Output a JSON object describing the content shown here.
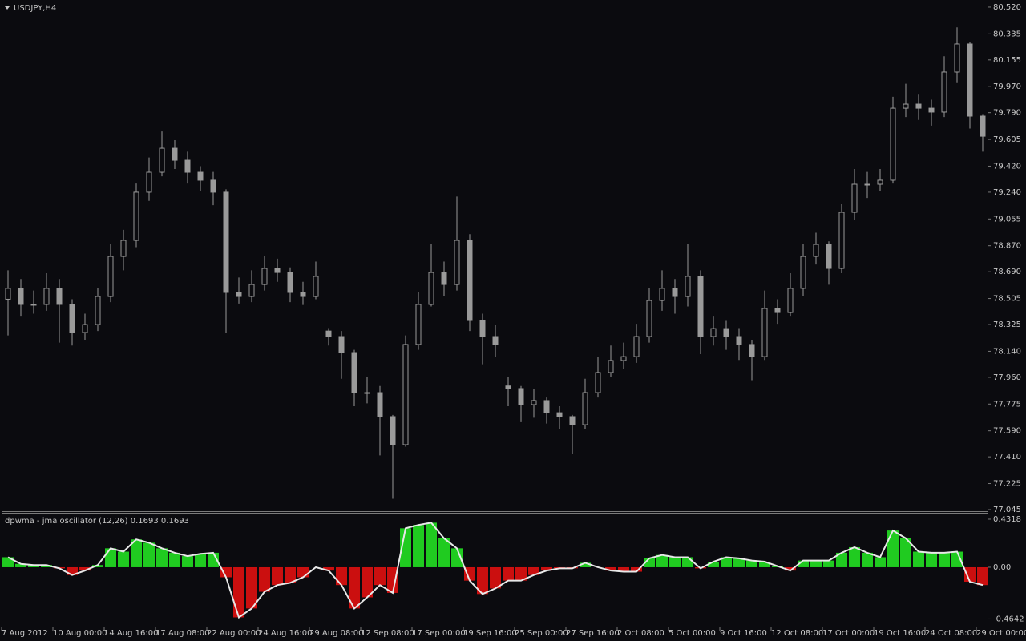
{
  "chart_data": [
    {
      "type": "candlestick",
      "title": "USDJPY,H4",
      "color": "#9a9a9a",
      "categories": [
        "7 Aug 2012",
        null,
        null,
        null,
        "10 Aug 00:00",
        null,
        null,
        null,
        "14 Aug 16:00",
        null,
        null,
        null,
        "17 Aug 08:00",
        null,
        null,
        null,
        "22 Aug 00:00",
        null,
        null,
        null,
        "24 Aug 16:00",
        null,
        null,
        null,
        "29 Aug 08:00",
        null,
        null,
        null,
        "12 Sep 08:00",
        null,
        null,
        null,
        "17 Sep 00:00",
        null,
        null,
        null,
        "19 Sep 16:00",
        null,
        null,
        null,
        "25 Sep 00:00",
        null,
        null,
        null,
        "27 Sep 16:00",
        null,
        null,
        null,
        "2 Oct 08:00",
        null,
        null,
        null,
        "5 Oct 00:00",
        null,
        null,
        null,
        "9 Oct 16:00",
        null,
        null,
        null,
        "12 Oct 08:00",
        null,
        null,
        null,
        "17 Oct 00:00",
        null,
        null,
        null,
        "19 Oct 16:00",
        null,
        null,
        null,
        "24 Oct 08:00",
        null,
        null,
        null,
        "29 Oct 00:00"
      ],
      "open": [
        78.5,
        78.575,
        78.464,
        78.464,
        78.575,
        78.464,
        78.27,
        78.325,
        78.519,
        78.796,
        78.907,
        79.24,
        79.378,
        79.544,
        79.461,
        79.378,
        79.323,
        79.24,
        78.547,
        78.519,
        78.602,
        78.713,
        78.685,
        78.547,
        78.519,
        78.28,
        78.242,
        78.131,
        77.854,
        77.854,
        77.688,
        77.494,
        78.187,
        78.464,
        78.685,
        78.602,
        78.907,
        78.353,
        78.242,
        77.9,
        77.882,
        77.771,
        77.799,
        77.715,
        77.688,
        77.632,
        77.854,
        77.993,
        78.076,
        78.103,
        78.242,
        78.491,
        78.575,
        78.519,
        78.658,
        78.242,
        78.297,
        78.242,
        78.187,
        78.103,
        78.436,
        78.408,
        78.575,
        78.796,
        78.879,
        78.713,
        79.101,
        79.295,
        79.295,
        79.323,
        79.821,
        79.849,
        79.821,
        79.794,
        80.071,
        80.265,
        79.766
      ],
      "high": [
        78.7,
        78.64,
        78.56,
        78.68,
        78.64,
        78.5,
        78.4,
        78.58,
        78.88,
        78.98,
        79.3,
        79.48,
        79.66,
        79.6,
        79.52,
        79.42,
        79.38,
        79.26,
        78.65,
        78.7,
        78.8,
        78.78,
        78.72,
        78.62,
        78.76,
        78.3,
        78.28,
        78.15,
        77.96,
        77.9,
        77.7,
        78.25,
        78.55,
        78.88,
        78.76,
        79.21,
        78.95,
        78.4,
        78.32,
        77.96,
        77.9,
        77.88,
        77.82,
        77.76,
        77.7,
        77.95,
        78.1,
        78.18,
        78.2,
        78.33,
        78.58,
        78.7,
        78.64,
        78.88,
        78.7,
        78.38,
        78.35,
        78.3,
        78.22,
        78.56,
        78.5,
        78.68,
        78.88,
        78.96,
        78.9,
        79.16,
        79.4,
        79.38,
        79.4,
        79.9,
        79.99,
        79.92,
        79.88,
        80.18,
        80.38,
        80.28,
        79.78
      ],
      "low": [
        78.25,
        78.38,
        78.4,
        78.42,
        78.2,
        78.18,
        78.22,
        78.28,
        78.48,
        78.7,
        78.86,
        79.18,
        79.35,
        79.4,
        79.3,
        79.25,
        79.15,
        78.27,
        78.47,
        78.48,
        78.56,
        78.62,
        78.48,
        78.46,
        78.5,
        78.18,
        77.95,
        77.76,
        77.78,
        77.42,
        77.12,
        77.48,
        78.15,
        78.45,
        78.52,
        78.56,
        78.28,
        78.05,
        78.1,
        77.76,
        77.65,
        77.68,
        77.64,
        77.6,
        77.43,
        77.6,
        77.82,
        77.96,
        78.02,
        78.06,
        78.2,
        78.42,
        78.4,
        78.45,
        78.12,
        78.18,
        78.15,
        78.08,
        77.94,
        78.08,
        78.33,
        78.38,
        78.52,
        78.74,
        78.6,
        78.68,
        79.05,
        79.2,
        79.25,
        79.3,
        79.76,
        79.74,
        79.7,
        79.76,
        80.0,
        79.68,
        79.52
      ],
      "close": [
        78.575,
        78.464,
        78.464,
        78.575,
        78.464,
        78.27,
        78.325,
        78.519,
        78.796,
        78.907,
        79.24,
        79.378,
        79.544,
        79.461,
        79.378,
        79.323,
        79.24,
        78.547,
        78.519,
        78.602,
        78.713,
        78.685,
        78.547,
        78.519,
        78.658,
        78.242,
        78.131,
        77.854,
        77.854,
        77.688,
        77.494,
        78.187,
        78.464,
        78.685,
        78.602,
        78.907,
        78.353,
        78.242,
        78.187,
        77.882,
        77.771,
        77.799,
        77.715,
        77.688,
        77.632,
        77.854,
        77.993,
        78.076,
        78.103,
        78.242,
        78.491,
        78.575,
        78.519,
        78.658,
        78.242,
        78.297,
        78.242,
        78.187,
        78.103,
        78.436,
        78.408,
        78.575,
        78.796,
        78.879,
        78.713,
        79.101,
        79.295,
        79.295,
        79.323,
        79.821,
        79.849,
        79.821,
        79.794,
        80.071,
        80.265,
        79.766,
        79.627
      ],
      "ylim": [
        77.034,
        80.553
      ],
      "yticks": [
        {
          "value": 80.52,
          "label": "80.520"
        },
        {
          "value": 80.335,
          "label": "80.335"
        },
        {
          "value": 80.155,
          "label": "80.155"
        },
        {
          "value": 79.97,
          "label": "79.970"
        },
        {
          "value": 79.79,
          "label": "79.790"
        },
        {
          "value": 79.605,
          "label": "79.605"
        },
        {
          "value": 79.42,
          "label": "79.420"
        },
        {
          "value": 79.24,
          "label": "79.240"
        },
        {
          "value": 79.055,
          "label": "79.055"
        },
        {
          "value": 78.87,
          "label": "78.870"
        },
        {
          "value": 78.69,
          "label": "78.690"
        },
        {
          "value": 78.505,
          "label": "78.505"
        },
        {
          "value": 78.325,
          "label": "78.325"
        },
        {
          "value": 78.14,
          "label": "78.140"
        },
        {
          "value": 77.96,
          "label": "77.960"
        },
        {
          "value": 77.775,
          "label": "77.775"
        },
        {
          "value": 77.59,
          "label": "77.590"
        },
        {
          "value": 77.41,
          "label": "77.410"
        },
        {
          "value": 77.225,
          "label": "77.225"
        },
        {
          "value": 77.045,
          "label": "77.045"
        }
      ]
    },
    {
      "type": "histogram-oscillator",
      "title": "dpwma - jma oscillator (12,26) 0.1693 0.1693",
      "up_color": "#22e022",
      "down_color": "#e01010",
      "line_color": "#e8e8e8",
      "values": [
        0.09,
        0.03,
        0.02,
        0.02,
        -0.01,
        -0.07,
        -0.03,
        0.02,
        0.17,
        0.14,
        0.25,
        0.22,
        0.17,
        0.13,
        0.1,
        0.12,
        0.13,
        -0.09,
        -0.45,
        -0.37,
        -0.22,
        -0.16,
        -0.14,
        -0.09,
        0.0,
        -0.03,
        -0.16,
        -0.37,
        -0.27,
        -0.16,
        -0.23,
        0.35,
        0.38,
        0.4,
        0.26,
        0.17,
        -0.12,
        -0.24,
        -0.19,
        -0.12,
        -0.12,
        -0.07,
        -0.03,
        -0.01,
        -0.01,
        0.04,
        0.0,
        -0.03,
        -0.04,
        -0.04,
        0.08,
        0.11,
        0.09,
        0.09,
        -0.01,
        0.05,
        0.09,
        0.08,
        0.06,
        0.05,
        0.01,
        -0.03,
        0.06,
        0.06,
        0.06,
        0.13,
        0.18,
        0.13,
        0.09,
        0.33,
        0.26,
        0.14,
        0.13,
        0.13,
        0.14,
        -0.13,
        -0.16
      ],
      "ylim": [
        -0.54,
        0.482
      ],
      "yticks": [
        0.4318,
        {
          "value": 0,
          "label": "0.00"
        },
        -0.4642
      ]
    }
  ]
}
